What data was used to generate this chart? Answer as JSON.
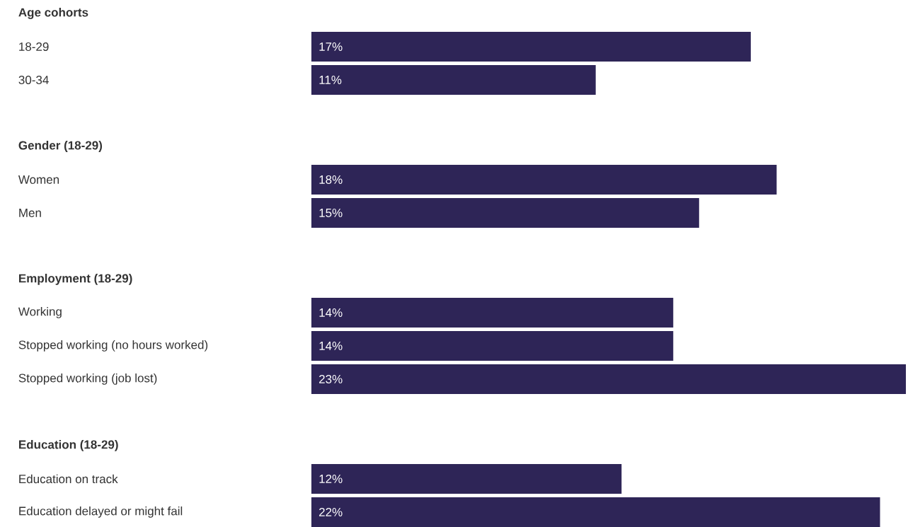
{
  "chart_data": {
    "type": "bar",
    "orientation": "horizontal",
    "color": "#2e2557",
    "categories": [
      "Age cohorts",
      "18-29",
      "30-34",
      null,
      "Gender (18-29)",
      "Women",
      "Men",
      null,
      "Employment (18-29)",
      "Working",
      "Stopped working (no hours worked)",
      "Stopped working (job lost)",
      null,
      "Education (18-29)",
      "Education on track",
      "Education delayed or might fail"
    ],
    "values": [
      null,
      17,
      11,
      null,
      null,
      18,
      15,
      null,
      null,
      14,
      14,
      23,
      null,
      null,
      12,
      22
    ],
    "value_labels": [
      null,
      "17%",
      "11%",
      null,
      null,
      "18%",
      "15%",
      null,
      null,
      "14%",
      "14%",
      "23%",
      null,
      null,
      "12%",
      "22%"
    ]
  }
}
